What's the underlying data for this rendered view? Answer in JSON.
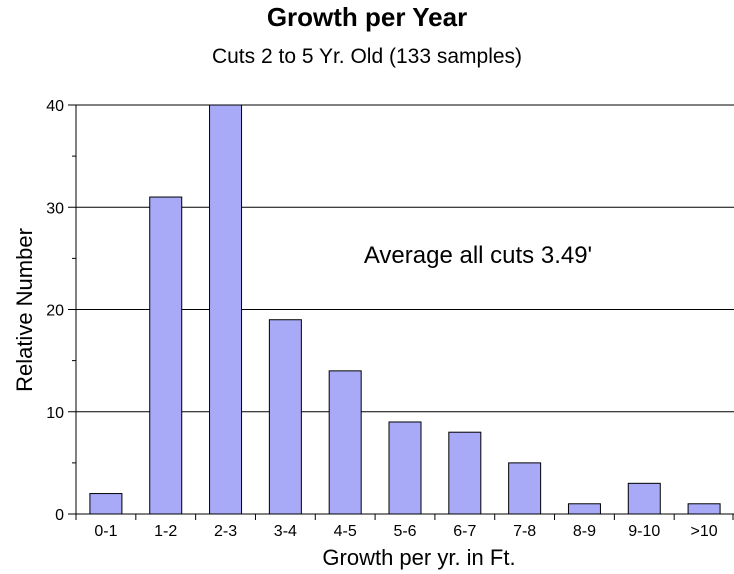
{
  "chart_data": {
    "type": "bar",
    "title": "Growth per Year",
    "subtitle": "Cuts 2 to 5 Yr. Old (133 samples)",
    "xlabel": "Growth per yr. in Ft.",
    "ylabel": "Relative Number",
    "categories": [
      "0-1",
      "1-2",
      "2-3",
      "3-4",
      "4-5",
      "5-6",
      "6-7",
      "7-8",
      "8-9",
      "9-10",
      ">10"
    ],
    "values": [
      2,
      31,
      40,
      19,
      14,
      9,
      8,
      5,
      1,
      3,
      1
    ],
    "ylim": [
      0,
      40
    ],
    "yticks": [
      0,
      10,
      20,
      30,
      40
    ],
    "grid": "horizontal",
    "annotation": "Average all cuts 3.49'",
    "colors": {
      "bar_fill": "#a8aaf8",
      "bar_stroke": "#000000",
      "grid": "#000000",
      "background": "#ffffff"
    }
  }
}
